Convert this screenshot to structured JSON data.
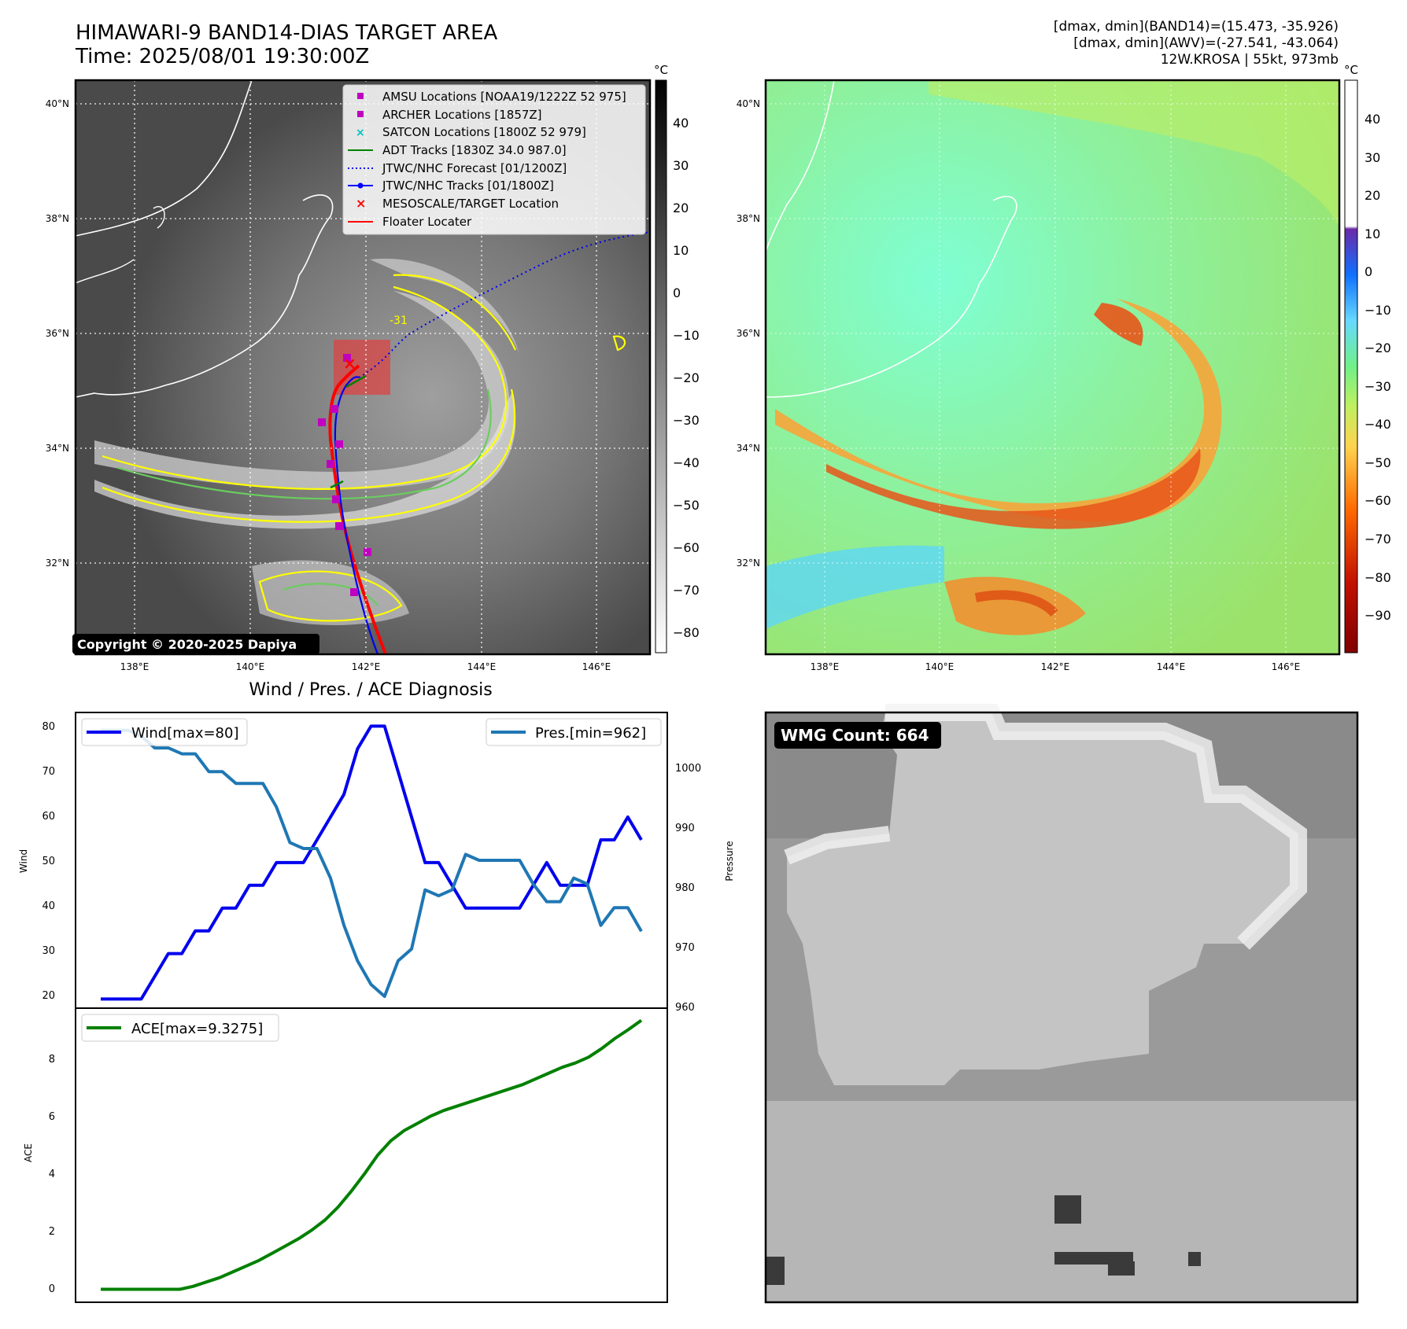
{
  "header": {
    "title_line1": "HIMAWARI-9 BAND14-DIAS TARGET AREA",
    "title_line2": "Time: 2025/08/01 19:30:00Z",
    "info_line1": "[dmax, dmin](BAND14)=(15.473, -35.926)",
    "info_line2": "[dmax, dmin](AWV)=(-27.541, -43.064)",
    "info_line3": "12W.KROSA | 55kt, 973mb"
  },
  "maps": {
    "lon_ticks": [
      "138°E",
      "140°E",
      "142°E",
      "144°E",
      "146°E"
    ],
    "lat_ticks": [
      "40°N",
      "38°N",
      "36°N",
      "34°N",
      "32°N"
    ],
    "contour_label": "-31",
    "copyright": "Copyright © 2020-2025 Dapiya",
    "left_colorbar": {
      "unit": "°C",
      "ticks": [
        "40",
        "30",
        "20",
        "10",
        "0",
        "−10",
        "−20",
        "−30",
        "−40",
        "−50",
        "−60",
        "−70",
        "−80"
      ]
    },
    "right_colorbar": {
      "unit": "°C",
      "ticks": [
        "40",
        "30",
        "20",
        "10",
        "0",
        "−10",
        "−20",
        "−30",
        "−40",
        "−50",
        "−60",
        "−70",
        "−80",
        "−90"
      ]
    },
    "legend": [
      {
        "label": "AMSU Locations [NOAA19/1222Z 52 975]",
        "marker": "square",
        "color": "#c000c0"
      },
      {
        "label": "ARCHER Locations [1857Z]",
        "marker": "square",
        "color": "#c000c0"
      },
      {
        "label": "SATCON Locations [1800Z 52 979]",
        "marker": "x",
        "color": "#00c0c0"
      },
      {
        "label": "ADT Tracks [1830Z 34.0 987.0]",
        "marker": "line",
        "color": "#008000"
      },
      {
        "label": "JTWC/NHC Forecast [01/1200Z]",
        "marker": "dotted",
        "color": "#0000ff"
      },
      {
        "label": "JTWC/NHC Tracks [01/1800Z]",
        "marker": "line-dot",
        "color": "#0000ff"
      },
      {
        "label": "MESOSCALE/TARGET Location",
        "marker": "x",
        "color": "#ff0000"
      },
      {
        "label": "Floater Locater",
        "marker": "line",
        "color": "#ff0000"
      }
    ]
  },
  "diagnosis": {
    "title": "Wind / Pres. / ACE Diagnosis",
    "wind_label": "Wind",
    "pressure_label": "Pressure",
    "ace_label": "ACE",
    "wind_legend": "Wind[max=80]",
    "pres_legend": "Pres.[min=962]",
    "ace_legend": "ACE[max=9.3275]",
    "wind_ticks": [
      "80",
      "70",
      "60",
      "50",
      "40",
      "30",
      "20"
    ],
    "pres_ticks": [
      "1000",
      "990",
      "980",
      "970",
      "960"
    ],
    "ace_ticks": [
      "8",
      "6",
      "4",
      "2",
      "0"
    ]
  },
  "wmg": {
    "label": "WMG Count: 664"
  },
  "colors": {
    "wind": "#0000ee",
    "pressure": "#1f77b4",
    "ace": "#008000",
    "floater": "#ff0000",
    "contour_yellow": "#ffff00",
    "contour_green": "#6acd5e"
  },
  "chart_data": [
    {
      "type": "line",
      "title": "Wind / Pres. / ACE Diagnosis",
      "xlabel": "",
      "ylabel": "Wind",
      "ylim": [
        18,
        83
      ],
      "y2label": "Pressure",
      "y2lim": [
        960,
        1010
      ],
      "series": [
        {
          "name": "Wind[max=80]",
          "axis": "left",
          "values": [
            20,
            20,
            20,
            20,
            25,
            30,
            30,
            35,
            35,
            40,
            40,
            45,
            45,
            50,
            50,
            50,
            55,
            60,
            65,
            75,
            80,
            80,
            70,
            60,
            50,
            50,
            45,
            40,
            40,
            40,
            40,
            40,
            45,
            50,
            45,
            45,
            45,
            55,
            55,
            60,
            55
          ]
        },
        {
          "name": "Pres.[min=962]",
          "axis": "right",
          "values": [
            1007,
            1007,
            1007,
            1006,
            1004,
            1004,
            1003,
            1003,
            1000,
            1000,
            998,
            998,
            998,
            994,
            988,
            987,
            987,
            982,
            974,
            968,
            964,
            962,
            968,
            970,
            980,
            979,
            980,
            986,
            985,
            985,
            985,
            985,
            981,
            978,
            978,
            982,
            981,
            974,
            977,
            977,
            973
          ]
        }
      ]
    },
    {
      "type": "line",
      "title": "",
      "xlabel": "",
      "ylabel": "ACE",
      "ylim": [
        -0.45,
        9.75
      ],
      "series": [
        {
          "name": "ACE[max=9.3275]",
          "values": [
            0,
            0,
            0,
            0,
            0,
            0,
            0,
            0.1,
            0.25,
            0.4,
            0.6,
            0.8,
            1.0,
            1.25,
            1.5,
            1.75,
            2.05,
            2.4,
            2.85,
            3.4,
            4.0,
            4.65,
            5.15,
            5.5,
            5.75,
            6.0,
            6.2,
            6.35,
            6.5,
            6.65,
            6.8,
            6.95,
            7.1,
            7.3,
            7.5,
            7.7,
            7.85,
            8.05,
            8.35,
            8.7,
            9.0,
            9.3275
          ]
        }
      ]
    }
  ]
}
